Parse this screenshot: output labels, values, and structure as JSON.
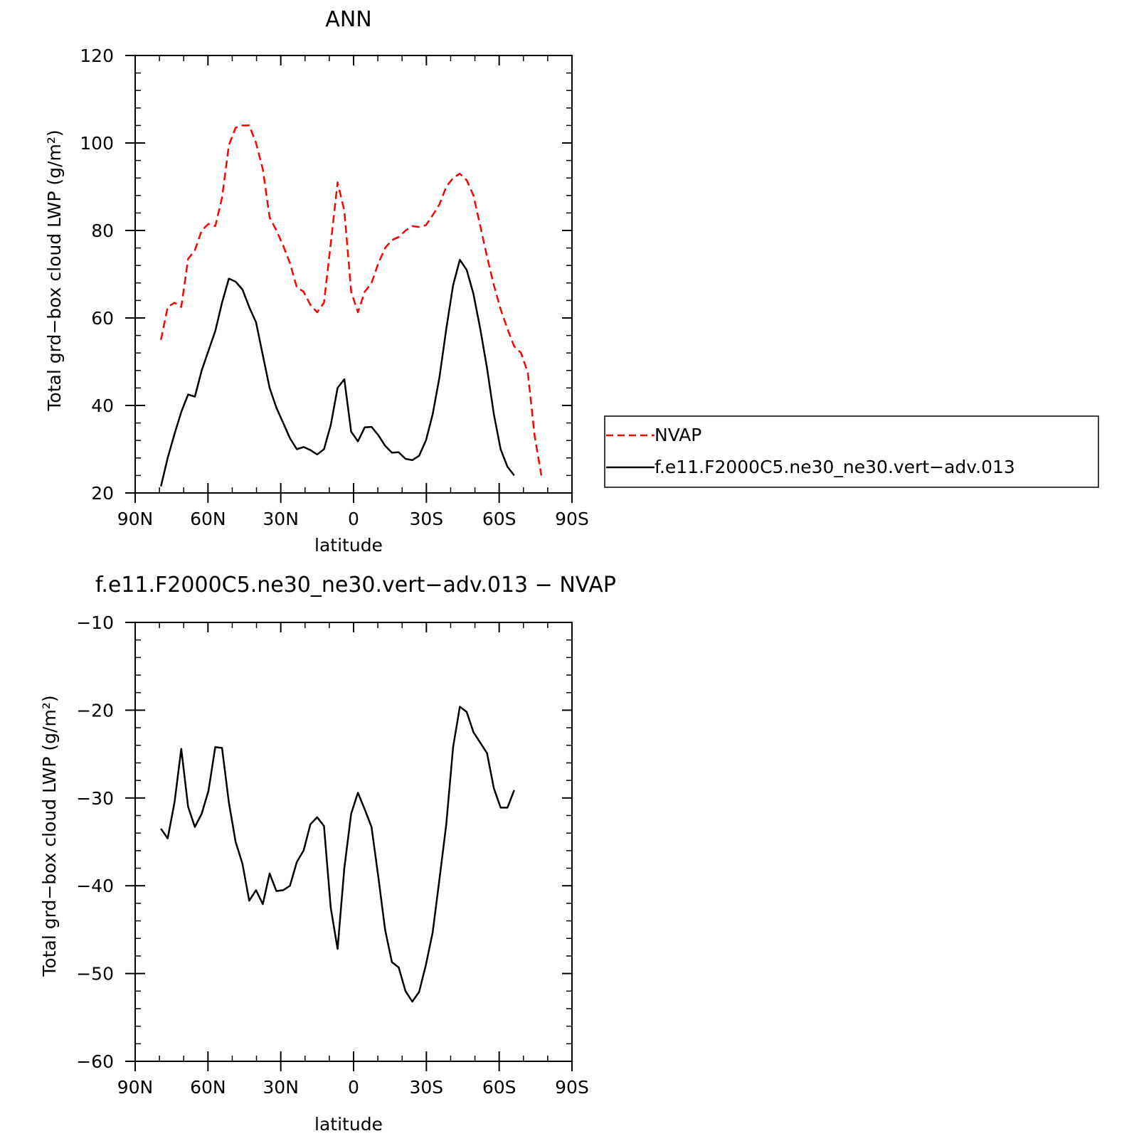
{
  "chart_data": [
    {
      "type": "line",
      "title": "ANN",
      "xlabel": "latitude",
      "ylabel": "Total grd−box cloud LWP (g/m²)",
      "xlim": [
        90,
        -90
      ],
      "ylim": [
        20,
        120
      ],
      "x_ticks": [
        {
          "value": 90,
          "label": "90N"
        },
        {
          "value": 60,
          "label": "60N"
        },
        {
          "value": 30,
          "label": "30N"
        },
        {
          "value": 0,
          "label": "0"
        },
        {
          "value": -30,
          "label": "30S"
        },
        {
          "value": -60,
          "label": "60S"
        },
        {
          "value": -90,
          "label": "90S"
        }
      ],
      "y_ticks": [
        {
          "value": 20,
          "label": "20"
        },
        {
          "value": 40,
          "label": "40"
        },
        {
          "value": 60,
          "label": "60"
        },
        {
          "value": 80,
          "label": "80"
        },
        {
          "value": 100,
          "label": "100"
        },
        {
          "value": 120,
          "label": "120"
        }
      ],
      "legend": "right-outside",
      "series": [
        {
          "name": "NVAP",
          "color": "#ff0000",
          "dash": "dashed",
          "x": [
            79.4,
            76.6,
            73.8,
            71.0,
            68.2,
            65.4,
            62.6,
            59.8,
            57.0,
            54.2,
            51.4,
            48.6,
            45.8,
            43.0,
            40.2,
            37.4,
            34.6,
            31.8,
            29.0,
            26.2,
            23.4,
            20.6,
            17.8,
            15.0,
            12.2,
            9.4,
            6.6,
            3.8,
            1.0,
            -1.8,
            -4.6,
            -7.4,
            -10.2,
            -13.0,
            -15.8,
            -18.6,
            -21.4,
            -24.2,
            -27.0,
            -29.8,
            -32.6,
            -35.4,
            -38.2,
            -41.0,
            -43.8,
            -46.6,
            -49.4,
            -52.2,
            -55.0,
            -57.8,
            -60.6,
            -63.4,
            -66.2,
            -69.0,
            -71.8,
            -74.6,
            -77.4
          ],
          "y": [
            55,
            62.5,
            63.5,
            62.5,
            73.5,
            75.5,
            80,
            81.5,
            81,
            87.5,
            99.5,
            103.5,
            104,
            104,
            100,
            94,
            83,
            80,
            76.5,
            72.5,
            67,
            66,
            63,
            61.3,
            63.5,
            77,
            91,
            84.5,
            66,
            61.3,
            66,
            68,
            72.5,
            76,
            77.8,
            78.5,
            80,
            81,
            80.8,
            81.2,
            83.5,
            86,
            90,
            92,
            93,
            91.5,
            88,
            81,
            74,
            67.5,
            62,
            57.5,
            53.5,
            52,
            47.5,
            33,
            24
          ]
        },
        {
          "name": "f.e11.F2000C5.ne30_ne30.vert−adv.013",
          "color": "#000000",
          "dash": "solid",
          "x": [
            79.4,
            76.6,
            73.8,
            71.0,
            68.2,
            65.4,
            62.6,
            59.8,
            57.0,
            54.2,
            51.4,
            48.6,
            45.8,
            43.0,
            40.2,
            37.4,
            34.6,
            31.8,
            29.0,
            26.2,
            23.4,
            20.6,
            17.8,
            15.0,
            12.2,
            9.4,
            6.6,
            3.8,
            1.0,
            -1.8,
            -4.6,
            -7.4,
            -10.2,
            -13.0,
            -15.8,
            -18.6,
            -21.4,
            -24.2,
            -27.0,
            -29.8,
            -32.6,
            -35.4,
            -38.2,
            -41.0,
            -43.8,
            -46.6,
            -49.4,
            -52.2,
            -55.0,
            -57.8,
            -60.6,
            -63.4,
            -66.2
          ],
          "y": [
            21.5,
            28,
            33.5,
            38.5,
            42.5,
            42,
            48,
            52.5,
            57,
            63.5,
            69,
            68.3,
            66.5,
            62.5,
            59,
            51.5,
            44,
            39.5,
            36,
            32.5,
            30,
            30.5,
            29.8,
            28.8,
            30,
            35.5,
            44,
            46,
            34,
            31.8,
            35,
            35.1,
            33.2,
            30.8,
            29.2,
            29.3,
            27.8,
            27.5,
            28.5,
            32,
            38,
            46.5,
            57.5,
            67.5,
            73.3,
            71,
            65.5,
            57.5,
            48.5,
            38,
            30,
            26,
            24
          ]
        }
      ]
    },
    {
      "type": "line",
      "title": "f.e11.F2000C5.ne30_ne30.vert−adv.013 − NVAP",
      "xlabel": "latitude",
      "ylabel": "Total grd−box cloud LWP (g/m²)",
      "xlim": [
        90,
        -90
      ],
      "ylim": [
        -60,
        -10
      ],
      "x_ticks": [
        {
          "value": 90,
          "label": "90N"
        },
        {
          "value": 60,
          "label": "60N"
        },
        {
          "value": 30,
          "label": "30N"
        },
        {
          "value": 0,
          "label": "0"
        },
        {
          "value": -30,
          "label": "30S"
        },
        {
          "value": -60,
          "label": "60S"
        },
        {
          "value": -90,
          "label": "90S"
        }
      ],
      "y_ticks": [
        {
          "value": -60,
          "label": "−60"
        },
        {
          "value": -50,
          "label": "−50"
        },
        {
          "value": -40,
          "label": "−40"
        },
        {
          "value": -30,
          "label": "−30"
        },
        {
          "value": -20,
          "label": "−20"
        },
        {
          "value": -10,
          "label": "−10"
        }
      ],
      "series": [
        {
          "color": "#000000",
          "dash": "solid",
          "x": [
            79.4,
            76.6,
            73.8,
            71.0,
            68.2,
            65.4,
            62.6,
            59.8,
            57.0,
            54.2,
            51.4,
            48.6,
            45.8,
            43.0,
            40.2,
            37.4,
            34.6,
            31.8,
            29.0,
            26.2,
            23.4,
            20.6,
            17.8,
            15.0,
            12.2,
            9.4,
            6.6,
            3.8,
            1.0,
            -1.8,
            -4.6,
            -7.4,
            -10.2,
            -13.0,
            -15.8,
            -18.6,
            -21.4,
            -24.2,
            -27.0,
            -29.8,
            -32.6,
            -35.4,
            -38.2,
            -41.0,
            -43.8,
            -46.6,
            -49.4,
            -52.2,
            -55.0,
            -57.8,
            -60.6,
            -63.4,
            -66.2
          ],
          "y": [
            -33.5,
            -34.6,
            -30.5,
            -24.4,
            -31,
            -33.3,
            -31.8,
            -29.2,
            -24.2,
            -24.3,
            -30.5,
            -35,
            -37.5,
            -41.7,
            -40.5,
            -42.1,
            -38.6,
            -40.6,
            -40.5,
            -40,
            -37.3,
            -36,
            -33,
            -32.2,
            -33.2,
            -42.5,
            -47.2,
            -38,
            -31.8,
            -29.4,
            -31.3,
            -33.3,
            -39,
            -45,
            -48.7,
            -49.3,
            -52,
            -53.2,
            -52.1,
            -49,
            -45.3,
            -39.2,
            -33,
            -24.2,
            -19.6,
            -20.2,
            -22.5,
            -23.7,
            -24.9,
            -28.9,
            -31.1,
            -31.1,
            -29.1
          ]
        }
      ]
    }
  ]
}
